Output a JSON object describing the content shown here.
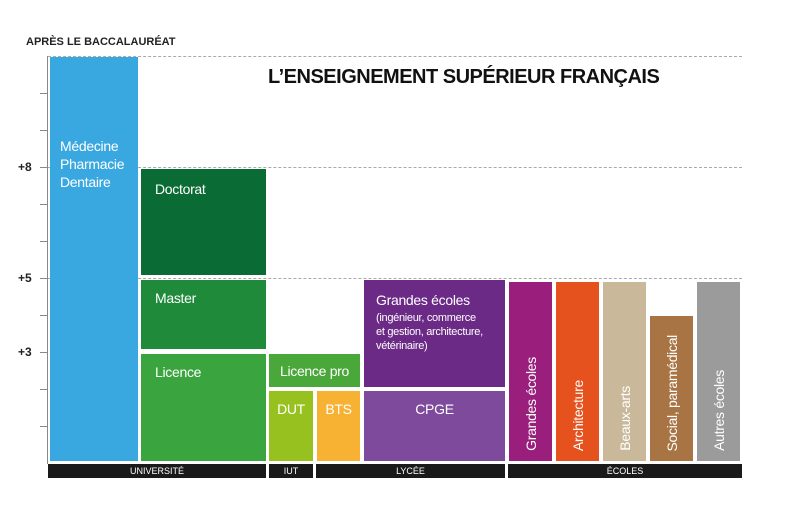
{
  "header": {
    "axis_title": "APRÈS LE BACCALAURÉAT",
    "title": "L’ENSEIGNEMENT SUPÉRIEUR FRANÇAIS"
  },
  "axis": {
    "ticks": [
      "+8",
      "+5",
      "+3"
    ]
  },
  "blocks": {
    "medecine": {
      "lines": [
        "Médecine",
        "Pharmacie",
        "Dentaire"
      ]
    },
    "doctorat": "Doctorat",
    "master": "Master",
    "licence": "Licence",
    "licence_pro": "Licence pro",
    "dut": "DUT",
    "bts": "BTS",
    "grandes_ecoles_lycee": {
      "title": "Grandes écoles",
      "lines": [
        "(ingénieur, commerce",
        "et gestion, architecture,",
        "vétérinaire)"
      ]
    },
    "cpge": "CPGE",
    "ecoles": [
      "Grandes écoles",
      "Architecture",
      "Beaux-arts",
      "Social, paramédical",
      "Autres écoles"
    ]
  },
  "footer": {
    "sections": [
      "UNIVERSITÉ",
      "IUT",
      "LYCÉE",
      "ÉCOLES"
    ]
  }
}
